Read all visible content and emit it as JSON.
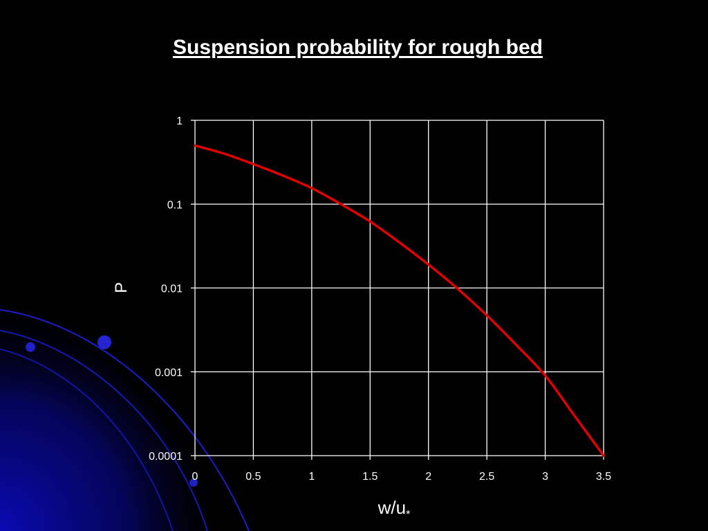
{
  "slide": {
    "title": "Suspension probability for rough bed"
  },
  "colors": {
    "background": "#000000",
    "line": "#e00000",
    "grid": "#ffffff",
    "decor": "#0a0ab4"
  },
  "chart_data": {
    "type": "line",
    "title": "",
    "xlabel_main": "w/u",
    "xlabel_sub": "*",
    "ylabel": "P",
    "y_scale": "log",
    "xlim": [
      0,
      3.5
    ],
    "ylim": [
      0.0001,
      1
    ],
    "grid": true,
    "legend": "none",
    "x_ticks": [
      "0",
      "0.5",
      "1",
      "1.5",
      "2",
      "2.5",
      "3",
      "3.5"
    ],
    "y_ticks": [
      "1",
      "0.1",
      "0.01",
      "0.001",
      "0.0001"
    ],
    "series": [
      {
        "x": [
          0,
          0.25,
          0.5,
          0.75,
          1.0,
          1.25,
          1.5,
          1.75,
          2.0,
          2.25,
          2.5,
          2.75,
          3.0,
          3.25,
          3.5
        ],
        "values": [
          0.5,
          0.4,
          0.3,
          0.22,
          0.155,
          0.1,
          0.062,
          0.035,
          0.019,
          0.0098,
          0.0047,
          0.0021,
          0.0009,
          0.0003,
          0.0001
        ]
      }
    ]
  }
}
